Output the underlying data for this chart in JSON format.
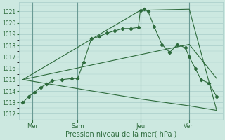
{
  "background_color": "#cce8e0",
  "grid_color": "#a8ccc8",
  "line_color": "#2d6b3c",
  "xlabel": "Pression niveau de la mer( hPa )",
  "ylim": [
    1011.5,
    1021.8
  ],
  "yticks": [
    1012,
    1013,
    1014,
    1015,
    1016,
    1017,
    1018,
    1019,
    1020,
    1021
  ],
  "xlim": [
    -0.2,
    10.2
  ],
  "xtick_labels": [
    "Mer",
    "Sam",
    "Jeu",
    "Ven"
  ],
  "xtick_positions": [
    0.5,
    2.8,
    6.0,
    8.5
  ],
  "vline_positions": [
    0.5,
    2.8,
    6.0,
    8.5
  ],
  "line1_x": [
    0.0,
    0.3,
    0.6,
    0.9,
    1.2,
    1.5,
    2.0,
    2.5,
    2.8,
    3.1,
    3.5,
    3.9,
    4.3,
    4.7,
    5.1,
    5.5,
    5.9,
    6.0,
    6.2,
    6.4,
    6.7,
    7.1,
    7.5,
    7.9,
    8.3,
    8.5,
    8.8,
    9.1,
    9.5,
    9.9
  ],
  "line1_y": [
    1013.0,
    1013.5,
    1013.9,
    1014.3,
    1014.6,
    1014.9,
    1015.0,
    1015.1,
    1015.1,
    1016.5,
    1018.6,
    1018.8,
    1019.1,
    1019.3,
    1019.5,
    1019.5,
    1019.6,
    1021.1,
    1021.2,
    1021.0,
    1019.7,
    1018.1,
    1017.4,
    1018.1,
    1017.8,
    1017.0,
    1016.0,
    1015.0,
    1014.7,
    1013.5
  ],
  "line2_x": [
    0.0,
    6.0,
    8.5,
    9.9
  ],
  "line2_y": [
    1015.0,
    1021.1,
    1021.2,
    1012.3
  ],
  "line3_x": [
    0.0,
    6.0,
    8.5,
    9.9
  ],
  "line3_y": [
    1015.0,
    1017.2,
    1018.1,
    1015.1
  ],
  "line4_x": [
    0.0,
    6.0,
    8.5,
    9.9
  ],
  "line4_y": [
    1015.0,
    1013.3,
    1012.7,
    1012.3
  ],
  "ytick_fontsize": 5.5,
  "xtick_fontsize": 6,
  "xlabel_fontsize": 7
}
